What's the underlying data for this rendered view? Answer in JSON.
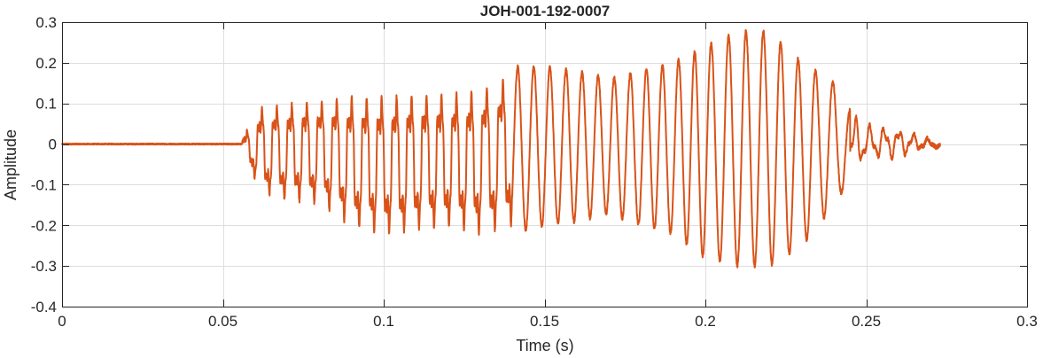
{
  "chart_data": {
    "type": "line",
    "title": "JOH-001-192-0007",
    "xlabel": "Time (s)",
    "ylabel": "Amplitude",
    "xlim": [
      0,
      0.3
    ],
    "ylim": [
      -0.4,
      0.3
    ],
    "xticks": [
      0,
      0.05,
      0.1,
      0.15,
      0.2,
      0.25,
      0.3
    ],
    "xtick_labels": [
      "0",
      "0.05",
      "0.1",
      "0.15",
      "0.2",
      "0.25",
      "0.3"
    ],
    "yticks": [
      0.3,
      0.2,
      0.1,
      0,
      -0.1,
      -0.2,
      -0.3,
      -0.4
    ],
    "ytick_labels": [
      "0.3",
      "0.2",
      "0.1",
      "0",
      "-0.1",
      "-0.2",
      "-0.3",
      "-0.4"
    ],
    "grid": true,
    "series": [
      {
        "color": "#d95319",
        "x_range": [
          0,
          0.273
        ],
        "voiced_onset": 0.056,
        "voiced_offset": 0.245,
        "envelope": {
          "t": [
            0,
            0.055,
            0.057,
            0.062,
            0.07,
            0.08,
            0.09,
            0.1,
            0.11,
            0.12,
            0.13,
            0.14,
            0.15,
            0.16,
            0.17,
            0.18,
            0.19,
            0.2,
            0.21,
            0.215,
            0.22,
            0.23,
            0.24,
            0.244,
            0.25,
            0.26,
            0.27,
            0.273
          ],
          "max": [
            0.002,
            0.004,
            0.03,
            0.1,
            0.11,
            0.12,
            0.135,
            0.135,
            0.14,
            0.14,
            0.15,
            0.19,
            0.19,
            0.18,
            0.16,
            0.18,
            0.2,
            0.24,
            0.275,
            0.28,
            0.275,
            0.2,
            0.15,
            0.09,
            0.05,
            0.04,
            0.012,
            0.0
          ],
          "min": [
            -0.002,
            -0.004,
            -0.04,
            -0.13,
            -0.15,
            -0.16,
            -0.22,
            -0.24,
            -0.23,
            -0.22,
            -0.24,
            -0.22,
            -0.2,
            -0.19,
            -0.17,
            -0.2,
            -0.22,
            -0.28,
            -0.3,
            -0.3,
            -0.3,
            -0.25,
            -0.15,
            -0.1,
            -0.04,
            -0.035,
            -0.008,
            -0.01
          ]
        }
      }
    ]
  }
}
